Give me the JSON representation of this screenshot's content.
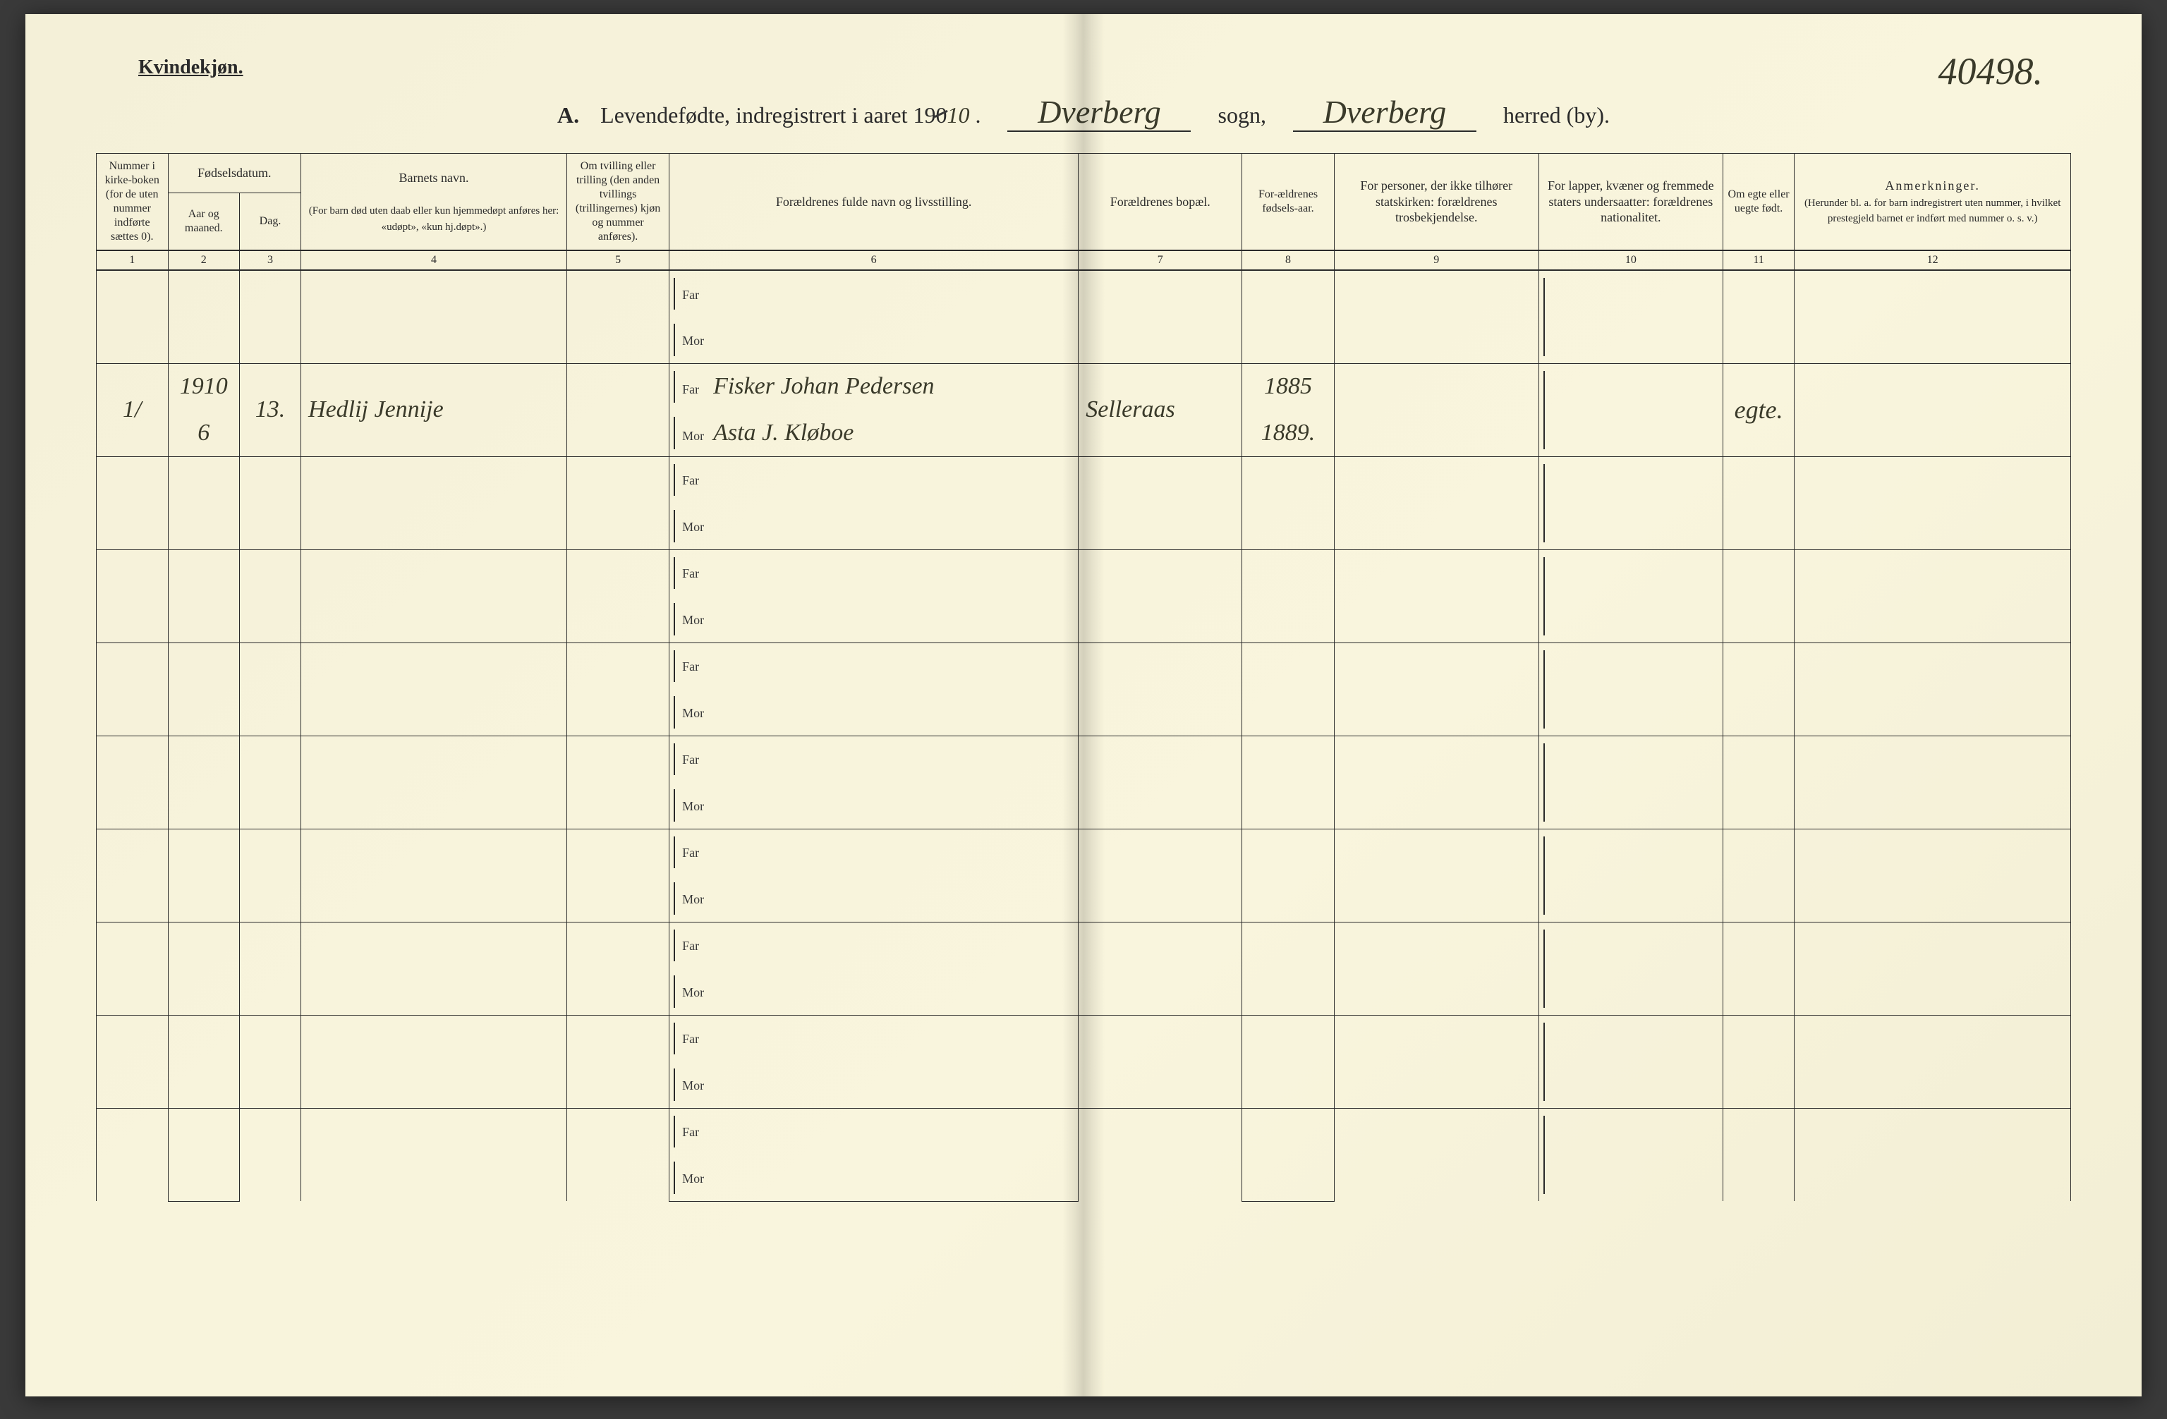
{
  "corner_id": "40498.",
  "gender_label": "Kvindekjøn.",
  "title": {
    "prefix": "A.",
    "text": "Levendefødte, indregistrert i aaret 19",
    "year_struck": "0",
    "year_hand": "10",
    "sogn_value": "Dverberg",
    "sogn_label": "sogn,",
    "herred_value": "Dverberg",
    "herred_label": "herred (by)."
  },
  "columns": {
    "c1": "Nummer i kirke-boken (for de uten nummer indførte sættes 0).",
    "c2_group": "Fødselsdatum.",
    "c2a": "Aar og maaned.",
    "c2b": "Dag.",
    "c4": "Barnets navn.",
    "c4_sub": "(For barn død uten daab eller kun hjemmedøpt anføres her: «udøpt», «kun hj.døpt».)",
    "c5": "Om tvilling eller trilling (den anden tvillings (trillingernes) kjøn og nummer anføres).",
    "c6": "Forældrenes fulde navn og livsstilling.",
    "c7": "Forældrenes bopæl.",
    "c8": "For-ældrenes fødsels-aar.",
    "c9": "For personer, der ikke tilhører statskirken: forældrenes trosbekjendelse.",
    "c10": "For lapper, kvæner og fremmede staters undersaatter: forældrenes nationalitet.",
    "c11": "Om egte eller uegte født.",
    "c12": "Anmerkninger.",
    "c12_sub": "(Herunder bl. a. for barn indregistrert uten nummer, i hvilket prestegjeld barnet er indført med nummer o. s. v.)"
  },
  "colnums": [
    "1",
    "2",
    "3",
    "4",
    "5",
    "6",
    "7",
    "8",
    "9",
    "10",
    "11",
    "12"
  ],
  "far_label": "Far",
  "mor_label": "Mor",
  "row_count": 10,
  "entry": {
    "row_index": 1,
    "num": "1/",
    "year_month": "1910\n6",
    "year": "1910",
    "month": "6",
    "day": "13.",
    "child_name": "Hedlij Jennije",
    "far_name": "Fisker Johan Pedersen",
    "mor_name": "Asta J. Kløboe",
    "residence": "Selleraas",
    "far_birth_year": "1885",
    "mor_birth_year": "1889.",
    "legitimacy": "egte."
  },
  "colors": {
    "paper": "#f6f2d9",
    "ink": "#2a2a2a",
    "hand": "#3a3a2a"
  }
}
